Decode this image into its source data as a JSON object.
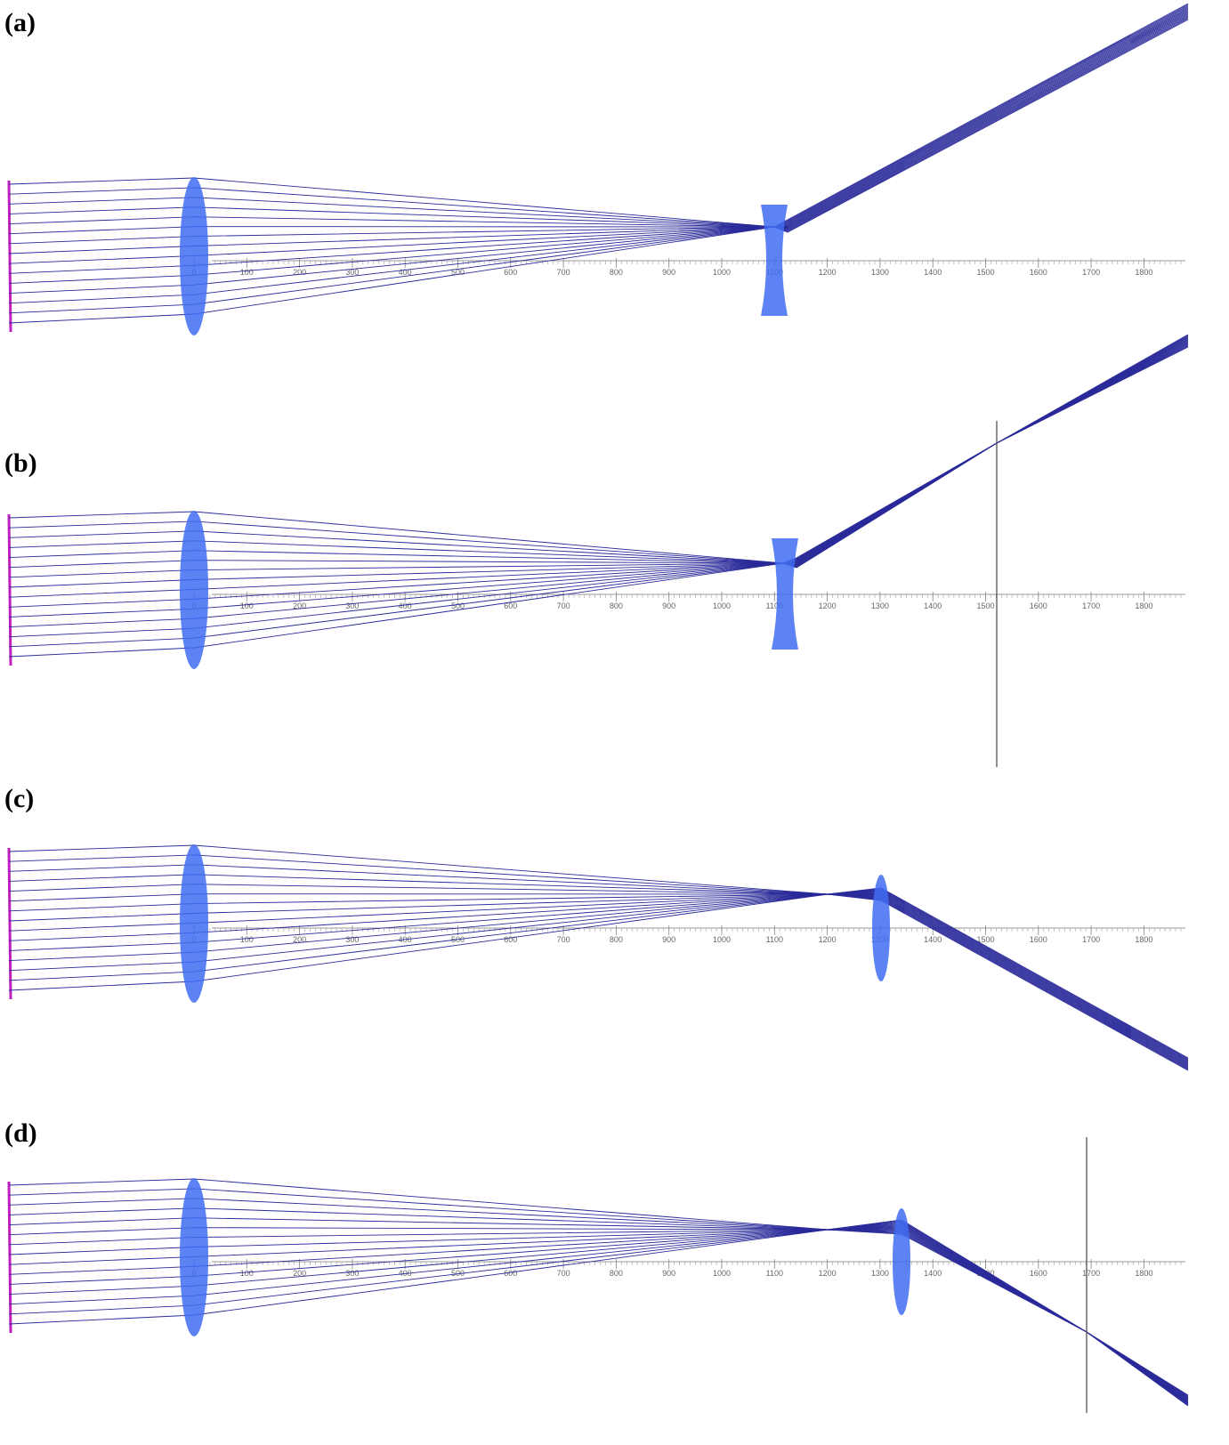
{
  "panels": [
    {
      "label": "(a)"
    },
    {
      "label": "(b)"
    },
    {
      "label": "(c)"
    },
    {
      "label": "(d)"
    }
  ],
  "ruler": [
    0,
    100,
    200,
    300,
    400,
    500,
    600,
    700,
    800,
    900,
    1000,
    1100,
    1200,
    1300,
    1400,
    1500,
    1600,
    1700,
    1800
  ]
}
